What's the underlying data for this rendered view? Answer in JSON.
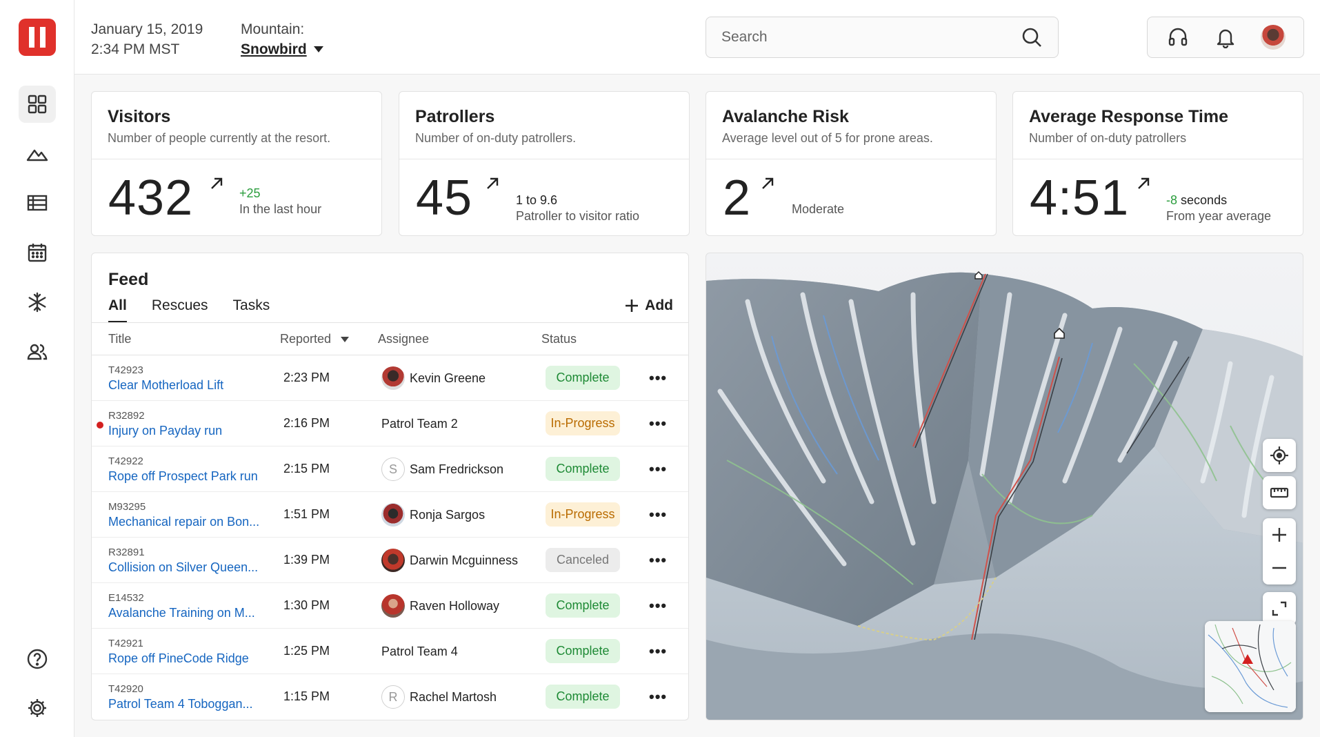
{
  "header": {
    "date": "January 15, 2019",
    "time": "2:34 PM MST",
    "mountain_label": "Mountain:",
    "mountain_value": "Snowbird",
    "search_placeholder": "Search"
  },
  "sidebar": {
    "items": [
      {
        "icon": "dashboard-icon",
        "active": true
      },
      {
        "icon": "mountain-icon"
      },
      {
        "icon": "table-icon"
      },
      {
        "icon": "calendar-icon"
      },
      {
        "icon": "snowflake-icon"
      },
      {
        "icon": "people-icon"
      }
    ],
    "bottom": [
      {
        "icon": "help-icon"
      },
      {
        "icon": "settings-icon"
      }
    ]
  },
  "stats": [
    {
      "title": "Visitors",
      "subtitle": "Number of people currently at the resort.",
      "value": "432",
      "delta": "+25",
      "note": "In the last hour"
    },
    {
      "title": "Patrollers",
      "subtitle": "Number of on-duty patrollers.",
      "value": "45",
      "line1": "1 to 9.6",
      "note": "Patroller to visitor ratio"
    },
    {
      "title": "Avalanche Risk",
      "subtitle": "Average level out of 5 for prone areas.",
      "value": "2",
      "note": "Moderate"
    },
    {
      "title": "Average Response Time",
      "subtitle": "Number of on-duty patrollers",
      "value": "4:51",
      "delta": "-8",
      "delta_suffix": "seconds",
      "note": "From year average"
    }
  ],
  "feed": {
    "title": "Feed",
    "tabs": [
      "All",
      "Rescues",
      "Tasks"
    ],
    "add_label": "Add",
    "columns": [
      "Title",
      "Reported",
      "Assignee",
      "Status"
    ],
    "rows": [
      {
        "id": "T42923",
        "title": "Clear Motherload Lift",
        "time": "2:23 PM",
        "assignee": "Kevin Greene",
        "status": "Complete"
      },
      {
        "id": "R32892",
        "title": "Injury on Payday run",
        "time": "2:16 PM",
        "assignee": "Patrol Team 2",
        "status": "In-Progress"
      },
      {
        "id": "T42922",
        "title": "Rope off Prospect Park run",
        "time": "2:15 PM",
        "assignee": "Sam Fredrickson",
        "initial": "S",
        "status": "Complete"
      },
      {
        "id": "M93295",
        "title": "Mechanical repair on Bon...",
        "time": "1:51 PM",
        "assignee": "Ronja Sargos",
        "status": "In-Progress"
      },
      {
        "id": "R32891",
        "title": "Collision on Silver Queen...",
        "time": "1:39 PM",
        "assignee": "Darwin Mcguinness",
        "status": "Canceled"
      },
      {
        "id": "E14532",
        "title": "Avalanche Training on M...",
        "time": "1:30 PM",
        "assignee": "Raven Holloway",
        "status": "Complete"
      },
      {
        "id": "T42921",
        "title": "Rope off PineCode Ridge",
        "time": "1:25 PM",
        "assignee": "Patrol Team 4",
        "status": "Complete"
      },
      {
        "id": "T42920",
        "title": "Patrol Team 4 Toboggan...",
        "time": "1:15 PM",
        "assignee": "Rachel Martosh",
        "initial": "R",
        "status": "Complete"
      }
    ]
  },
  "colors": {
    "brand": "#e0312b",
    "link": "#1565c0",
    "complete": "#1e8a35",
    "in_progress": "#b96b00",
    "canceled": "#777777",
    "alert": "#d32020"
  }
}
